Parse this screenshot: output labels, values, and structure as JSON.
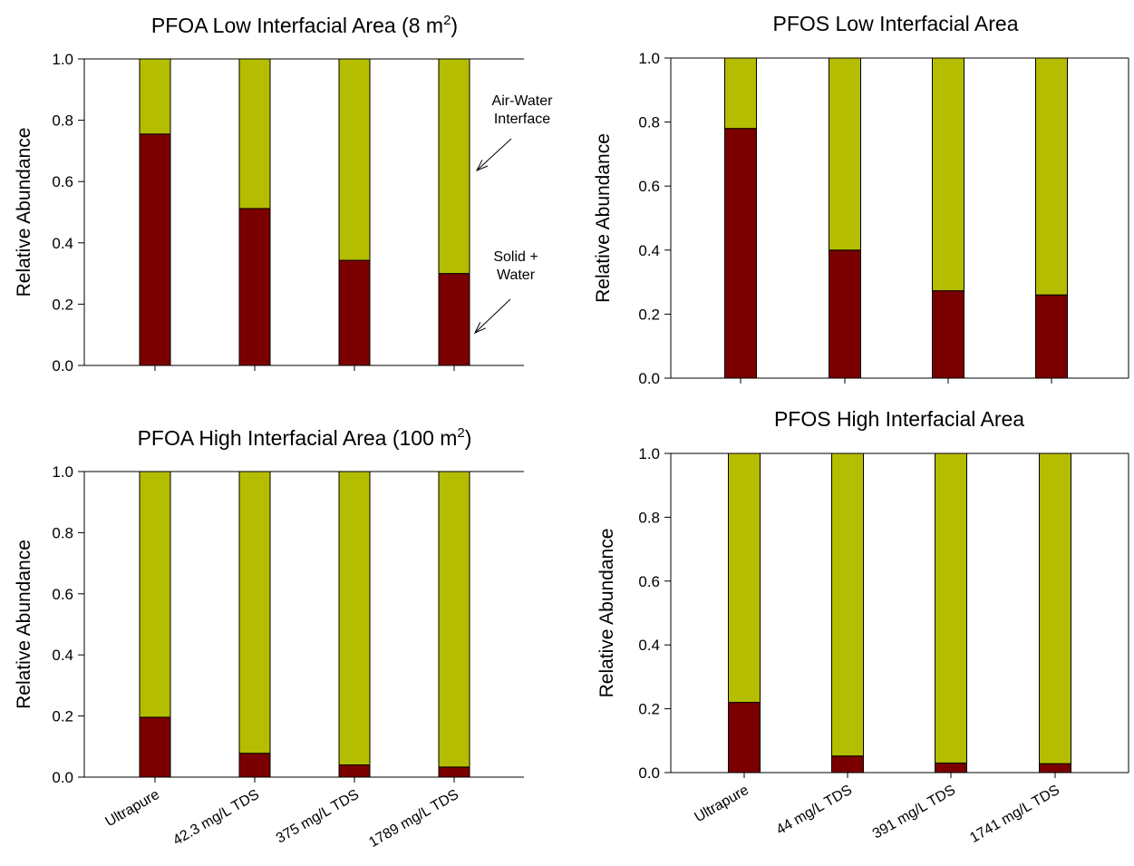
{
  "colors": {
    "solid_water": "#7a0000",
    "air_water": "#b5bd00",
    "outline": "#000000"
  },
  "chart_data": [
    {
      "type": "bar",
      "stacked": true,
      "title": "PFOA Low Interfacial Area (8 m",
      "title_sup": "2",
      "title_suffix": ")",
      "ylabel": "Relative Abundance",
      "ylim": [
        0,
        1
      ],
      "yticks": [
        "0.0",
        "0.2",
        "0.4",
        "0.6",
        "0.8",
        "1.0"
      ],
      "categories": [
        "Ultrapure",
        "42.3 mg/L TDS",
        "375 mg/L TDS",
        "1789 mg/L TDS"
      ],
      "show_category_labels": false,
      "series": [
        {
          "color_key": "solid_water",
          "values": [
            0.755,
            0.512,
            0.343,
            0.3
          ]
        },
        {
          "color_key": "air_water",
          "values": [
            0.245,
            0.488,
            0.657,
            0.7
          ]
        }
      ],
      "annotations": [
        {
          "lines": [
            "Air-Water",
            "Interface"
          ]
        },
        {
          "lines": [
            "Solid +",
            "Water"
          ]
        }
      ]
    },
    {
      "type": "bar",
      "stacked": true,
      "title": "PFOS Low Interfacial Area",
      "title_sup": "",
      "title_suffix": "",
      "ylabel": "Relative Abundance",
      "ylim": [
        0,
        1
      ],
      "yticks": [
        "0.0",
        "0.2",
        "0.4",
        "0.6",
        "0.8",
        "1.0"
      ],
      "categories": [
        "Ultrapure",
        "44 mg/L TDS",
        "391 mg/L TDS",
        "1741 mg/L TDS"
      ],
      "show_category_labels": false,
      "series": [
        {
          "color_key": "solid_water",
          "values": [
            0.78,
            0.4,
            0.273,
            0.26
          ]
        },
        {
          "color_key": "air_water",
          "values": [
            0.22,
            0.6,
            0.727,
            0.74
          ]
        }
      ],
      "annotations": []
    },
    {
      "type": "bar",
      "stacked": true,
      "title": "PFOA High Interfacial Area (100 m",
      "title_sup": "2",
      "title_suffix": ")",
      "ylabel": "Relative Abundance",
      "ylim": [
        0,
        1
      ],
      "yticks": [
        "0.0",
        "0.2",
        "0.4",
        "0.6",
        "0.8",
        "1.0"
      ],
      "categories": [
        "Ultrapure",
        "42.3 mg/L TDS",
        "375 mg/L TDS",
        "1789 mg/L TDS"
      ],
      "show_category_labels": true,
      "series": [
        {
          "color_key": "solid_water",
          "values": [
            0.196,
            0.078,
            0.04,
            0.033
          ]
        },
        {
          "color_key": "air_water",
          "values": [
            0.804,
            0.922,
            0.96,
            0.967
          ]
        }
      ],
      "annotations": []
    },
    {
      "type": "bar",
      "stacked": true,
      "title": "PFOS High Interfacial Area",
      "title_sup": "",
      "title_suffix": "",
      "ylabel": "Relative Abundance",
      "ylim": [
        0,
        1
      ],
      "yticks": [
        "0.0",
        "0.2",
        "0.4",
        "0.6",
        "0.8",
        "1.0"
      ],
      "categories": [
        "Ultrapure",
        "44 mg/L TDS",
        "391 mg/L TDS",
        "1741 mg/L TDS"
      ],
      "show_category_labels": true,
      "series": [
        {
          "color_key": "solid_water",
          "values": [
            0.22,
            0.052,
            0.03,
            0.028
          ]
        },
        {
          "color_key": "air_water",
          "values": [
            0.78,
            0.948,
            0.97,
            0.972
          ]
        }
      ],
      "annotations": []
    }
  ]
}
